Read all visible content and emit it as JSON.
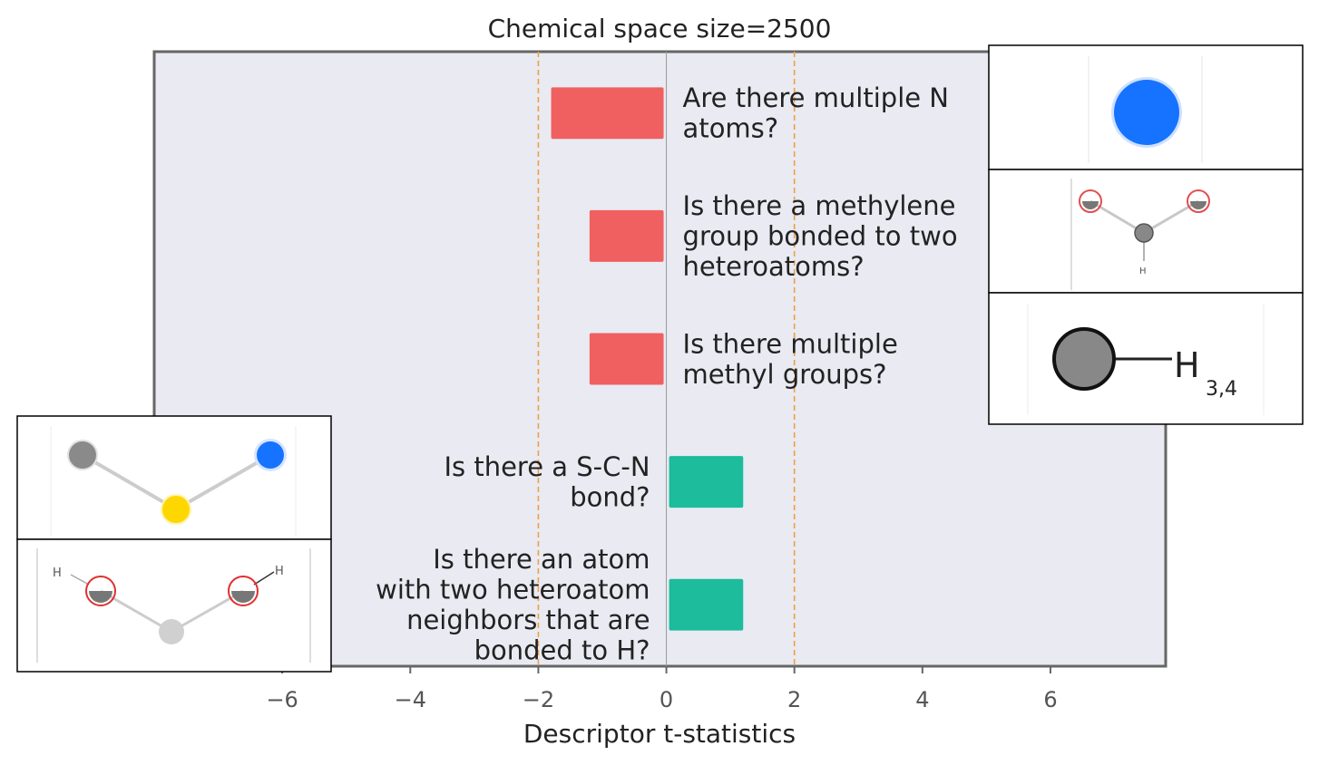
{
  "chart_data": {
    "type": "bar",
    "orientation": "horizontal",
    "title": "Chemical space size=2500",
    "xlabel": "Descriptor t-statistics",
    "ylabel": "",
    "xlim": [
      -8.0,
      7.8
    ],
    "xticks": [
      -6,
      -4,
      -2,
      0,
      2,
      4,
      6
    ],
    "xtick_labels": [
      "−6",
      "−4",
      "−2",
      "0",
      "2",
      "4",
      "6"
    ],
    "reference_lines": [
      -2,
      2
    ],
    "grid": false,
    "categories": [
      "Are there multiple N atoms?",
      "Is there a methylene group bonded to two heteroatoms?",
      "Is there multiple methyl groups?",
      "Is there a S-C-N bond?",
      "Is there an atom with two heteroatom neighbors that are bonded to H?"
    ],
    "category_lines": [
      [
        "Are there multiple N",
        "atoms?"
      ],
      [
        "Is there a methylene",
        "group bonded to two",
        "heteroatoms?"
      ],
      [
        "Is there multiple",
        "methyl groups?"
      ],
      [
        "Is there a S-C-N",
        "bond?"
      ],
      [
        "Is there an atom",
        "with two heteroatom",
        "neighbors that are",
        "bonded to H?"
      ]
    ],
    "values": [
      -1.8,
      -1.2,
      -1.2,
      1.2,
      1.2
    ],
    "colors": {
      "negative": "#f06060",
      "positive": "#1cbc9c",
      "threshold_line": "#f0a040",
      "zero_line": "#999999",
      "plot_background": "#e9eaf2",
      "frame": "#666666"
    }
  },
  "insets": {
    "right_top_panel": {
      "depicts": "nitrogen-atom-icon"
    },
    "right_middle_panel": {
      "depicts": "methylene-fragment-icon",
      "label": "H"
    },
    "right_bottom_panel": {
      "depicts": "methyl-fragment-icon",
      "atom_label": "H",
      "subscript": "3,4"
    },
    "left_top_panel": {
      "depicts": "s-c-n-fragment-icon"
    },
    "left_bottom_panel": {
      "depicts": "heteroatom-h-fragment-icon",
      "label_left": "H",
      "label_right": "H"
    }
  }
}
